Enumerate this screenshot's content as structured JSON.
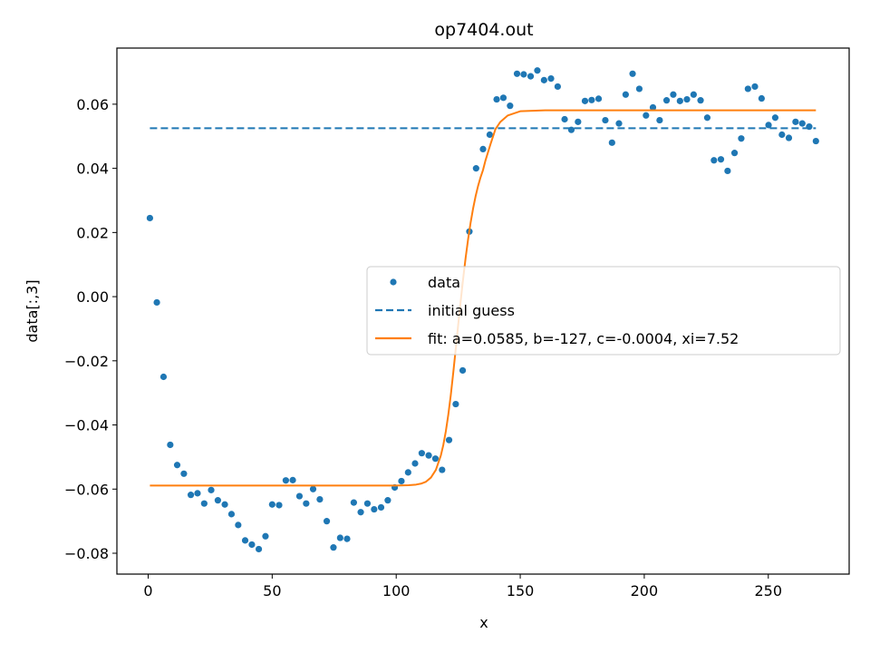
{
  "chart_data": {
    "type": "scatter",
    "title": "op7404.out",
    "xlabel": "x",
    "ylabel": "data[:,3]",
    "xlim": [
      -12.6,
      282.6
    ],
    "ylim": [
      -0.0865,
      0.0775
    ],
    "xticks": [
      0,
      50,
      100,
      150,
      200,
      250
    ],
    "yticks": [
      -0.08,
      -0.06,
      -0.04,
      -0.02,
      0.0,
      0.02,
      0.04,
      0.06
    ],
    "xtick_labels": [
      "0",
      "50",
      "100",
      "150",
      "200",
      "250"
    ],
    "ytick_labels": [
      "−0.08",
      "−0.06",
      "−0.04",
      "−0.02",
      "0.00",
      "0.02",
      "0.04",
      "0.06"
    ],
    "grid": false,
    "legend_position": "center-right",
    "series": [
      {
        "name": "data",
        "kind": "scatter",
        "color": "#1f77b4",
        "x": [
          0.7,
          3.5,
          6.2,
          8.9,
          11.7,
          14.4,
          17.2,
          19.9,
          22.6,
          25.4,
          28.1,
          30.9,
          33.6,
          36.3,
          39.1,
          41.8,
          44.6,
          47.3,
          50.0,
          52.8,
          55.5,
          58.3,
          61.0,
          63.7,
          66.5,
          69.2,
          72.0,
          74.7,
          77.4,
          80.2,
          82.9,
          85.7,
          88.4,
          91.1,
          93.9,
          96.6,
          99.4,
          102.1,
          104.8,
          107.6,
          110.3,
          113.1,
          115.8,
          118.5,
          121.3,
          124.0,
          126.8,
          129.5,
          132.2,
          135.0,
          137.7,
          140.5,
          143.2,
          145.9,
          148.7,
          151.4,
          154.2,
          156.9,
          159.6,
          162.4,
          165.1,
          167.9,
          170.6,
          173.3,
          176.1,
          178.8,
          181.6,
          184.3,
          187.0,
          189.8,
          192.5,
          195.3,
          198.0,
          200.7,
          203.5,
          206.2,
          209.0,
          211.7,
          214.4,
          217.2,
          219.9,
          222.7,
          225.4,
          228.1,
          230.9,
          233.6,
          236.4,
          239.1,
          241.8,
          244.6,
          247.3,
          250.1,
          252.8,
          255.5,
          258.3,
          261.0,
          263.7,
          266.5,
          269.2
        ],
        "y": [
          0.0245,
          -0.0018,
          -0.025,
          -0.0462,
          -0.0525,
          -0.0552,
          -0.0618,
          -0.0613,
          -0.0645,
          -0.0603,
          -0.0635,
          -0.0648,
          -0.0678,
          -0.0712,
          -0.076,
          -0.0773,
          -0.0787,
          -0.0747,
          -0.0648,
          -0.065,
          -0.0573,
          -0.0572,
          -0.0622,
          -0.0645,
          -0.06,
          -0.0632,
          -0.07,
          -0.0782,
          -0.0752,
          -0.0755,
          -0.0642,
          -0.0672,
          -0.0645,
          -0.0663,
          -0.0657,
          -0.0635,
          -0.0595,
          -0.0575,
          -0.0548,
          -0.052,
          -0.0488,
          -0.0495,
          -0.0505,
          -0.054,
          -0.0447,
          -0.0335,
          -0.023,
          0.0203,
          0.04,
          0.046,
          0.0505,
          0.0615,
          0.062,
          0.0595,
          0.0695,
          0.0693,
          0.0687,
          0.0705,
          0.0675,
          0.068,
          0.0655,
          0.0553,
          0.052,
          0.0545,
          0.061,
          0.0613,
          0.0617,
          0.055,
          0.048,
          0.054,
          0.063,
          0.0695,
          0.0648,
          0.0565,
          0.059,
          0.055,
          0.0612,
          0.063,
          0.061,
          0.0615,
          0.063,
          0.0612,
          0.0558,
          0.0425,
          0.0428,
          0.0392,
          0.0448,
          0.0493,
          0.0648,
          0.0655,
          0.0618,
          0.0535,
          0.0558,
          0.0505,
          0.0495,
          0.0545,
          0.054,
          0.053,
          0.0485
        ]
      },
      {
        "name": "initial guess",
        "kind": "line",
        "style": "dashed",
        "color": "#1f77b4",
        "x": [
          0.7,
          269.2
        ],
        "y": [
          0.0525,
          0.0525
        ]
      },
      {
        "name": "fit: a=0.0585, b=-127, c=-0.0004, xi=7.52",
        "kind": "line",
        "style": "solid",
        "color": "#ff7f0e",
        "x": [
          0.7,
          100,
          105,
          108,
          110,
          112,
          114,
          116,
          118,
          119,
          120,
          121,
          122,
          123,
          124,
          125,
          126,
          127,
          128,
          129,
          130,
          131,
          132,
          133,
          134,
          135,
          136,
          138,
          140,
          142,
          145,
          150,
          160,
          269.2
        ],
        "y": [
          -0.0589,
          -0.0589,
          -0.0588,
          -0.0586,
          -0.0583,
          -0.0577,
          -0.0564,
          -0.054,
          -0.0495,
          -0.0462,
          -0.042,
          -0.0368,
          -0.0307,
          -0.0237,
          -0.0163,
          -0.0087,
          -0.0013,
          0.0057,
          0.0122,
          0.018,
          0.0231,
          0.0275,
          0.0313,
          0.0345,
          0.0372,
          0.0395,
          0.0425,
          0.0475,
          0.0522,
          0.0545,
          0.0565,
          0.0578,
          0.0581,
          0.0581
        ]
      }
    ]
  }
}
